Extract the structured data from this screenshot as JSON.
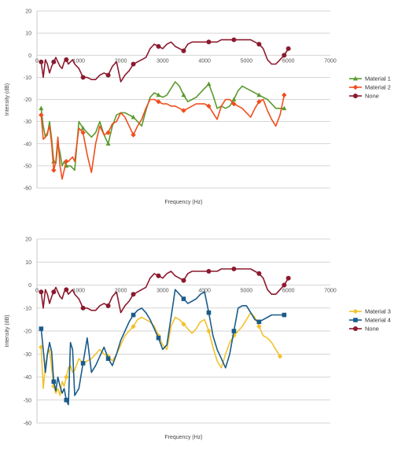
{
  "chart_data": [
    {
      "type": "line",
      "xlabel": "Frequency (Hz)",
      "ylabel": "Intensity (dB)",
      "xlim": [
        0,
        7000
      ],
      "ylim": [
        -60,
        20
      ],
      "xticks": [
        0,
        1000,
        2000,
        3000,
        4000,
        5000,
        6000,
        7000
      ],
      "yticks": [
        20,
        10,
        0,
        -10,
        -20,
        -30,
        -40,
        -50,
        -60
      ],
      "grid": true,
      "legend": "right",
      "series": [
        {
          "name": "Material 1",
          "color": "#5b9a2e",
          "x": [
            100,
            150,
            200,
            250,
            300,
            350,
            400,
            450,
            500,
            550,
            600,
            650,
            700,
            750,
            800,
            850,
            900,
            1000,
            1100,
            1200,
            1300,
            1400,
            1500,
            1600,
            1700,
            1800,
            1900,
            2000,
            2100,
            2200,
            2300,
            2400,
            2500,
            2600,
            2700,
            2800,
            2900,
            3000,
            3100,
            3200,
            3300,
            3400,
            3500,
            3600,
            3700,
            3800,
            3900,
            4000,
            4100,
            4200,
            4300,
            4400,
            4500,
            4600,
            4700,
            4800,
            4900,
            5000,
            5100,
            5200,
            5300,
            5400,
            5500,
            5600,
            5700,
            5800,
            5900
          ],
          "y": [
            -24,
            -32,
            -37,
            -36,
            -30,
            -38,
            -48,
            -49,
            -40,
            -44,
            -50,
            -48,
            -50,
            -50,
            -50,
            -51,
            -52,
            -30,
            -33,
            -35,
            -37,
            -35,
            -30,
            -36,
            -40,
            -32,
            -27,
            -26,
            -26,
            -27,
            -28,
            -30,
            -32,
            -25,
            -19,
            -17,
            -18,
            -19,
            -18,
            -15,
            -12,
            -14,
            -18,
            -21,
            -20,
            -19,
            -17,
            -15,
            -13,
            -18,
            -24,
            -23,
            -24,
            -23,
            -20,
            -16,
            -14,
            -15,
            -16,
            -17,
            -18,
            -19,
            -20,
            -22,
            -24,
            -24,
            -24
          ]
        },
        {
          "name": "Material 2",
          "color": "#f04e1d",
          "x": [
            100,
            150,
            200,
            250,
            300,
            350,
            400,
            450,
            500,
            550,
            600,
            650,
            700,
            750,
            800,
            850,
            900,
            1000,
            1100,
            1200,
            1300,
            1400,
            1500,
            1600,
            1700,
            1800,
            1900,
            2000,
            2100,
            2200,
            2300,
            2400,
            2500,
            2600,
            2700,
            2800,
            2900,
            3000,
            3100,
            3200,
            3300,
            3400,
            3500,
            3600,
            3700,
            3800,
            3900,
            4000,
            4100,
            4200,
            4300,
            4400,
            4500,
            4600,
            4700,
            4800,
            4900,
            5000,
            5100,
            5200,
            5300,
            5400,
            5500,
            5600,
            5700,
            5800,
            5900
          ],
          "y": [
            -27,
            -38,
            -37,
            -35,
            -32,
            -40,
            -52,
            -48,
            -37,
            -50,
            -56,
            -52,
            -48,
            -48,
            -47,
            -46,
            -48,
            -33,
            -35,
            -45,
            -53,
            -40,
            -32,
            -36,
            -35,
            -31,
            -30,
            -26,
            -28,
            -32,
            -36,
            -32,
            -29,
            -24,
            -20,
            -20,
            -21,
            -22,
            -22,
            -23,
            -23,
            -24,
            -25,
            -24,
            -23,
            -22,
            -22,
            -22,
            -23,
            -26,
            -29,
            -23,
            -20,
            -20,
            -22,
            -23,
            -24,
            -26,
            -28,
            -24,
            -21,
            -20,
            -25,
            -29,
            -32,
            -27,
            -18
          ]
        },
        {
          "name": "None",
          "color": "#8b1a2e",
          "x": [
            100,
            150,
            200,
            250,
            300,
            350,
            400,
            450,
            500,
            550,
            600,
            650,
            700,
            750,
            800,
            850,
            900,
            1000,
            1100,
            1200,
            1300,
            1400,
            1500,
            1600,
            1700,
            1800,
            1900,
            2000,
            2100,
            2200,
            2300,
            2400,
            2500,
            2600,
            2700,
            2800,
            2900,
            3000,
            3100,
            3200,
            3300,
            3400,
            3500,
            3600,
            3700,
            3800,
            3900,
            4000,
            4100,
            4200,
            4300,
            4400,
            4500,
            4600,
            4700,
            4800,
            4900,
            5000,
            5100,
            5200,
            5300,
            5400,
            5500,
            5600,
            5700,
            5800,
            5900,
            6000
          ],
          "y": [
            -3,
            -10,
            -2,
            -4,
            -8,
            -5,
            -3,
            -1,
            -3,
            -5,
            -6,
            -3,
            -2,
            -4,
            -3,
            -2,
            -4,
            -6,
            -10,
            -10,
            -11,
            -11,
            -9,
            -8,
            -9,
            -5,
            -3,
            -12,
            -9,
            -7,
            -4,
            -3,
            -2,
            -1,
            3,
            5,
            4,
            3,
            5,
            6,
            4,
            3,
            2,
            5,
            6,
            6,
            6,
            6,
            6,
            6,
            6,
            7,
            7,
            7,
            7,
            7,
            7,
            7,
            7,
            6,
            5,
            3,
            -2,
            -4,
            -4,
            -2,
            0,
            3
          ]
        }
      ]
    },
    {
      "type": "line",
      "xlabel": "Frequency (Hz)",
      "ylabel": "Intensity (dB)",
      "xlim": [
        0,
        7000
      ],
      "ylim": [
        -60,
        20
      ],
      "xticks": [
        0,
        1000,
        2000,
        3000,
        4000,
        5000,
        6000,
        7000
      ],
      "yticks": [
        20,
        10,
        0,
        -10,
        -20,
        -30,
        -40,
        -50,
        -60
      ],
      "grid": true,
      "legend": "right",
      "series": [
        {
          "name": "Material 3",
          "color": "#f2c22d",
          "x": [
            100,
            150,
            200,
            250,
            300,
            350,
            400,
            450,
            500,
            550,
            600,
            650,
            700,
            750,
            800,
            850,
            900,
            1000,
            1100,
            1200,
            1300,
            1400,
            1500,
            1600,
            1700,
            1800,
            1900,
            2000,
            2100,
            2200,
            2300,
            2400,
            2500,
            2600,
            2700,
            2800,
            2900,
            3000,
            3100,
            3200,
            3300,
            3400,
            3500,
            3600,
            3700,
            3800,
            3900,
            4000,
            4100,
            4200,
            4300,
            4400,
            4500,
            4600,
            4700,
            4800,
            4900,
            5000,
            5100,
            5200,
            5300,
            5400,
            5500,
            5600,
            5700,
            5800
          ],
          "y": [
            -27,
            -45,
            -35,
            -30,
            -28,
            -36,
            -44,
            -47,
            -45,
            -48,
            -42,
            -44,
            -40,
            -36,
            -35,
            -38,
            -37,
            -32,
            -34,
            -33,
            -32,
            -30,
            -28,
            -30,
            -31,
            -33,
            -30,
            -26,
            -22,
            -20,
            -18,
            -15,
            -14,
            -15,
            -16,
            -18,
            -22,
            -26,
            -28,
            -18,
            -14,
            -15,
            -17,
            -19,
            -21,
            -19,
            -16,
            -15,
            -20,
            -27,
            -33,
            -36,
            -30,
            -25,
            -22,
            -20,
            -18,
            -15,
            -12,
            -14,
            -18,
            -22,
            -23,
            -25,
            -28,
            -31
          ]
        },
        {
          "name": "Material 4",
          "color": "#1a5c8a",
          "x": [
            100,
            150,
            200,
            250,
            300,
            350,
            400,
            450,
            500,
            550,
            600,
            650,
            700,
            750,
            800,
            850,
            900,
            1000,
            1100,
            1200,
            1300,
            1400,
            1500,
            1600,
            1700,
            1800,
            1900,
            2000,
            2100,
            2200,
            2300,
            2400,
            2500,
            2600,
            2700,
            2800,
            2900,
            3000,
            3100,
            3200,
            3300,
            3400,
            3500,
            3600,
            3700,
            3800,
            3900,
            4000,
            4100,
            4200,
            4300,
            4400,
            4500,
            4600,
            4700,
            4800,
            4900,
            5000,
            5100,
            5200,
            5300,
            5400,
            5500,
            5600,
            5700,
            5800,
            5900
          ],
          "y": [
            -19,
            -28,
            -38,
            -30,
            -25,
            -29,
            -42,
            -46,
            -40,
            -44,
            -47,
            -45,
            -50,
            -52,
            -25,
            -28,
            -48,
            -45,
            -34,
            -23,
            -38,
            -35,
            -31,
            -27,
            -32,
            -35,
            -30,
            -24,
            -20,
            -16,
            -13,
            -11,
            -10,
            -12,
            -15,
            -19,
            -23,
            -28,
            -26,
            -14,
            -2,
            -4,
            -6,
            -8,
            -7,
            -6,
            -4,
            -3,
            -12,
            -22,
            -28,
            -32,
            -36,
            -30,
            -20,
            -10,
            -9,
            -9,
            -12,
            -15,
            -16,
            -15,
            -14,
            -13,
            -13,
            -13,
            -13
          ]
        },
        {
          "name": "None",
          "color": "#8b1a2e",
          "x": [
            100,
            150,
            200,
            250,
            300,
            350,
            400,
            450,
            500,
            550,
            600,
            650,
            700,
            750,
            800,
            850,
            900,
            1000,
            1100,
            1200,
            1300,
            1400,
            1500,
            1600,
            1700,
            1800,
            1900,
            2000,
            2100,
            2200,
            2300,
            2400,
            2500,
            2600,
            2700,
            2800,
            2900,
            3000,
            3100,
            3200,
            3300,
            3400,
            3500,
            3600,
            3700,
            3800,
            3900,
            4000,
            4100,
            4200,
            4300,
            4400,
            4500,
            4600,
            4700,
            4800,
            4900,
            5000,
            5100,
            5200,
            5300,
            5400,
            5500,
            5600,
            5700,
            5800,
            5900,
            6000
          ],
          "y": [
            -3,
            -10,
            -2,
            -4,
            -8,
            -5,
            -3,
            -1,
            -3,
            -5,
            -6,
            -3,
            -2,
            -4,
            -3,
            -2,
            -4,
            -6,
            -10,
            -10,
            -11,
            -11,
            -9,
            -8,
            -9,
            -5,
            -3,
            -12,
            -9,
            -7,
            -4,
            -3,
            -2,
            -1,
            3,
            5,
            4,
            3,
            5,
            6,
            4,
            3,
            2,
            5,
            6,
            6,
            6,
            6,
            6,
            6,
            6,
            7,
            7,
            7,
            7,
            7,
            7,
            7,
            7,
            6,
            5,
            3,
            -2,
            -4,
            -4,
            -2,
            0,
            3
          ]
        }
      ]
    }
  ]
}
